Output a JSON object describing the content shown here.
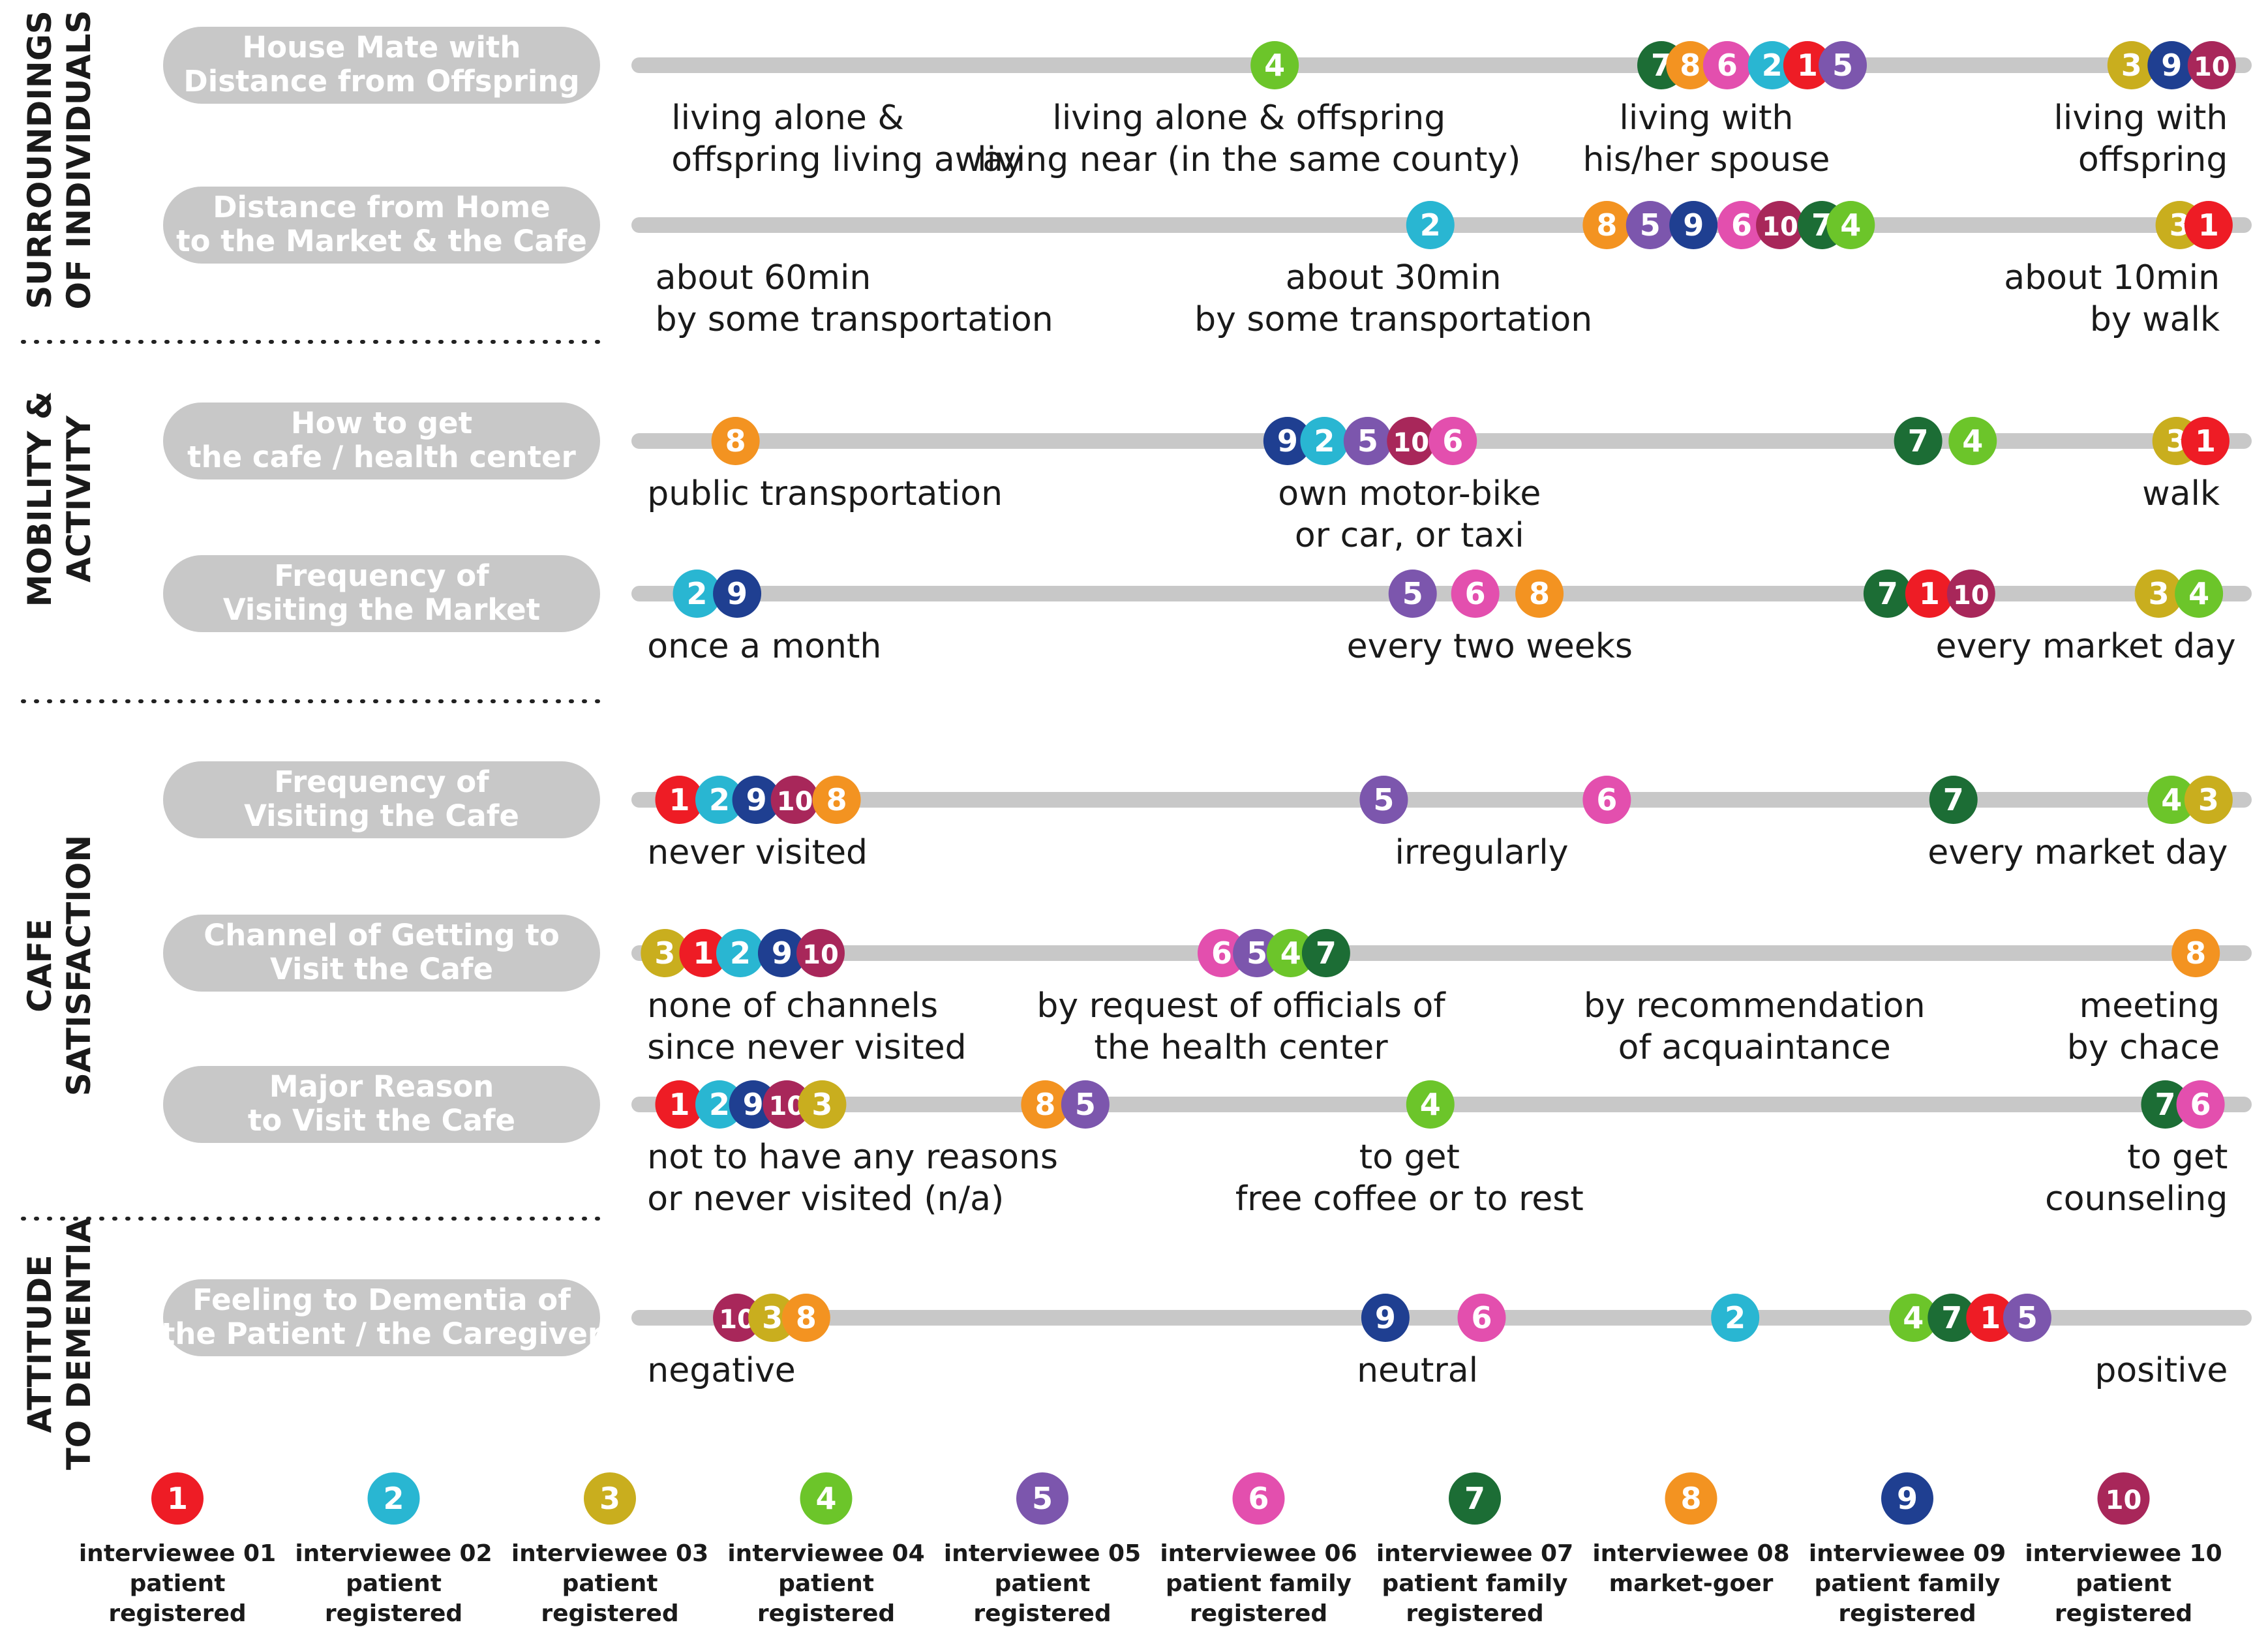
{
  "chart_data": {
    "type": "scatter",
    "title": "",
    "sections": [
      {
        "key": "surroundings",
        "lines": [
          "SURROUNDINGS",
          "OF INDIVIDUALS"
        ]
      },
      {
        "key": "mobility",
        "lines": [
          "MOBILITY &",
          "ACTIVITY"
        ]
      },
      {
        "key": "cafe",
        "lines": [
          "CAFE",
          "SATISFACTION"
        ]
      },
      {
        "key": "attitude",
        "lines": [
          "ATTITUDE",
          "TO DEMENTIA"
        ]
      }
    ],
    "rows": [
      {
        "key": "housemate",
        "label": [
          "House Mate with",
          "Distance from Offspring"
        ],
        "scale_labels": [
          {
            "lines": [
              "living alone &",
              "offspring living away"
            ],
            "pos": 0.02,
            "align": "start"
          },
          {
            "lines": [
              "living alone & offspring",
              "living near (in the same county)"
            ],
            "pos": 0.38,
            "align": "middle"
          },
          {
            "lines": [
              "living with",
              "his/her spouse"
            ],
            "pos": 0.665,
            "align": "middle"
          },
          {
            "lines": [
              "living with",
              "offspring"
            ],
            "pos": 0.99,
            "align": "end"
          }
        ],
        "points": [
          {
            "id": 4,
            "pos": 0.396
          },
          {
            "id": 7,
            "pos": 0.637
          },
          {
            "id": 8,
            "pos": 0.655
          },
          {
            "id": 6,
            "pos": 0.678
          },
          {
            "id": 2,
            "pos": 0.706
          },
          {
            "id": 1,
            "pos": 0.728
          },
          {
            "id": 5,
            "pos": 0.75
          },
          {
            "id": 3,
            "pos": 0.93
          },
          {
            "id": 9,
            "pos": 0.955
          },
          {
            "id": 10,
            "pos": 0.98
          }
        ]
      },
      {
        "key": "distance",
        "label": [
          "Distance from Home",
          "to the Market & the Cafe"
        ],
        "scale_labels": [
          {
            "lines": [
              "about 60min",
              "by some transportation"
            ],
            "pos": 0.01,
            "align": "start"
          },
          {
            "lines": [
              "about 30min",
              "by some transportation"
            ],
            "pos": 0.47,
            "align": "middle"
          },
          {
            "lines": [
              "about 10min",
              "by walk"
            ],
            "pos": 0.985,
            "align": "end"
          }
        ],
        "points": [
          {
            "id": 2,
            "pos": 0.493
          },
          {
            "id": 8,
            "pos": 0.603
          },
          {
            "id": 5,
            "pos": 0.63
          },
          {
            "id": 9,
            "pos": 0.657
          },
          {
            "id": 6,
            "pos": 0.687
          },
          {
            "id": 10,
            "pos": 0.711
          },
          {
            "id": 7,
            "pos": 0.737
          },
          {
            "id": 4,
            "pos": 0.755
          },
          {
            "id": 3,
            "pos": 0.96
          },
          {
            "id": 1,
            "pos": 0.978
          }
        ]
      },
      {
        "key": "howtoget",
        "label": [
          "How to get",
          "the cafe / health center"
        ],
        "scale_labels": [
          {
            "lines": [
              "public transportation"
            ],
            "pos": 0.005,
            "align": "start"
          },
          {
            "lines": [
              "own motor-bike",
              "or car, or taxi"
            ],
            "pos": 0.48,
            "align": "middle"
          },
          {
            "lines": [
              "walk"
            ],
            "pos": 0.985,
            "align": "end"
          }
        ],
        "points": [
          {
            "id": 8,
            "pos": 0.06
          },
          {
            "id": 9,
            "pos": 0.404
          },
          {
            "id": 2,
            "pos": 0.427
          },
          {
            "id": 5,
            "pos": 0.454
          },
          {
            "id": 10,
            "pos": 0.481
          },
          {
            "id": 6,
            "pos": 0.507
          },
          {
            "id": 7,
            "pos": 0.797
          },
          {
            "id": 4,
            "pos": 0.831
          },
          {
            "id": 3,
            "pos": 0.958
          },
          {
            "id": 1,
            "pos": 0.976
          }
        ]
      },
      {
        "key": "market",
        "label": [
          "Frequency of",
          "Visiting the Market"
        ],
        "scale_labels": [
          {
            "lines": [
              "once a month"
            ],
            "pos": 0.005,
            "align": "start"
          },
          {
            "lines": [
              "every two weeks"
            ],
            "pos": 0.53,
            "align": "middle"
          },
          {
            "lines": [
              "every market day"
            ],
            "pos": 0.995,
            "align": "end"
          }
        ],
        "points": [
          {
            "id": 2,
            "pos": 0.036
          },
          {
            "id": 9,
            "pos": 0.061
          },
          {
            "id": 5,
            "pos": 0.482
          },
          {
            "id": 6,
            "pos": 0.521
          },
          {
            "id": 8,
            "pos": 0.561
          },
          {
            "id": 7,
            "pos": 0.778
          },
          {
            "id": 1,
            "pos": 0.804
          },
          {
            "id": 10,
            "pos": 0.83
          },
          {
            "id": 3,
            "pos": 0.947
          },
          {
            "id": 4,
            "pos": 0.972
          }
        ]
      },
      {
        "key": "cafefreq",
        "label": [
          "Frequency of",
          "Visiting the Cafe"
        ],
        "scale_labels": [
          {
            "lines": [
              "never visited"
            ],
            "pos": 0.005,
            "align": "start"
          },
          {
            "lines": [
              "irregularly"
            ],
            "pos": 0.525,
            "align": "middle"
          },
          {
            "lines": [
              "every market day"
            ],
            "pos": 0.99,
            "align": "end"
          }
        ],
        "points": [
          {
            "id": 1,
            "pos": 0.025
          },
          {
            "id": 2,
            "pos": 0.05
          },
          {
            "id": 9,
            "pos": 0.073
          },
          {
            "id": 10,
            "pos": 0.097
          },
          {
            "id": 8,
            "pos": 0.123
          },
          {
            "id": 5,
            "pos": 0.464
          },
          {
            "id": 6,
            "pos": 0.603
          },
          {
            "id": 7,
            "pos": 0.819
          },
          {
            "id": 4,
            "pos": 0.955
          },
          {
            "id": 3,
            "pos": 0.978
          }
        ]
      },
      {
        "key": "channel",
        "label": [
          "Channel of Getting to",
          "Visit the Cafe"
        ],
        "scale_labels": [
          {
            "lines": [
              "none of channels",
              "since never visited"
            ],
            "pos": 0.005,
            "align": "start"
          },
          {
            "lines": [
              "by request of officials of",
              "the health center"
            ],
            "pos": 0.375,
            "align": "middle"
          },
          {
            "lines": [
              "by recommendation",
              "of acquaintance"
            ],
            "pos": 0.695,
            "align": "middle"
          },
          {
            "lines": [
              "meeting",
              "by chace"
            ],
            "pos": 0.985,
            "align": "end"
          }
        ],
        "points": [
          {
            "id": 3,
            "pos": 0.016
          },
          {
            "id": 1,
            "pos": 0.04
          },
          {
            "id": 2,
            "pos": 0.063
          },
          {
            "id": 9,
            "pos": 0.089
          },
          {
            "id": 10,
            "pos": 0.113
          },
          {
            "id": 6,
            "pos": 0.363
          },
          {
            "id": 5,
            "pos": 0.385
          },
          {
            "id": 4,
            "pos": 0.406
          },
          {
            "id": 7,
            "pos": 0.428
          },
          {
            "id": 8,
            "pos": 0.97
          }
        ]
      },
      {
        "key": "reason",
        "label": [
          "Major Reason",
          "to Visit the Cafe"
        ],
        "scale_labels": [
          {
            "lines": [
              "not to have any reasons",
              "or never visited (n/a)"
            ],
            "pos": 0.005,
            "align": "start"
          },
          {
            "lines": [
              "to get",
              "free coffee or to rest"
            ],
            "pos": 0.48,
            "align": "middle"
          },
          {
            "lines": [
              "to get",
              "counseling"
            ],
            "pos": 0.99,
            "align": "end"
          }
        ],
        "points": [
          {
            "id": 1,
            "pos": 0.025
          },
          {
            "id": 2,
            "pos": 0.05
          },
          {
            "id": 9,
            "pos": 0.071
          },
          {
            "id": 10,
            "pos": 0.092
          },
          {
            "id": 3,
            "pos": 0.114
          },
          {
            "id": 8,
            "pos": 0.253
          },
          {
            "id": 5,
            "pos": 0.278
          },
          {
            "id": 4,
            "pos": 0.493
          },
          {
            "id": 7,
            "pos": 0.951
          },
          {
            "id": 6,
            "pos": 0.973
          }
        ]
      },
      {
        "key": "feeling",
        "label": [
          "Feeling to Dementia of",
          "the Patient / the Caregiver"
        ],
        "scale_labels": [
          {
            "lines": [
              "negative"
            ],
            "pos": 0.005,
            "align": "start"
          },
          {
            "lines": [
              "neutral"
            ],
            "pos": 0.485,
            "align": "middle"
          },
          {
            "lines": [
              "positive"
            ],
            "pos": 0.99,
            "align": "end"
          }
        ],
        "points": [
          {
            "id": 10,
            "pos": 0.061
          },
          {
            "id": 3,
            "pos": 0.083
          },
          {
            "id": 8,
            "pos": 0.104
          },
          {
            "id": 9,
            "pos": 0.465
          },
          {
            "id": 6,
            "pos": 0.525
          },
          {
            "id": 2,
            "pos": 0.683
          },
          {
            "id": 4,
            "pos": 0.794
          },
          {
            "id": 7,
            "pos": 0.818
          },
          {
            "id": 1,
            "pos": 0.842
          },
          {
            "id": 5,
            "pos": 0.865
          }
        ]
      }
    ],
    "legend": [
      {
        "id": 1,
        "number": "1",
        "color": "#ee1c25",
        "lines": [
          "interviewee 01",
          "patient",
          "registered"
        ]
      },
      {
        "id": 2,
        "number": "2",
        "color": "#29b6d2",
        "lines": [
          "interviewee 02",
          "patient",
          "registered"
        ]
      },
      {
        "id": 3,
        "number": "3",
        "color": "#c9ae1e",
        "lines": [
          "interviewee 03",
          "patient",
          "registered"
        ]
      },
      {
        "id": 4,
        "number": "4",
        "color": "#6cc52a",
        "lines": [
          "interviewee 04",
          "patient",
          "registered"
        ]
      },
      {
        "id": 5,
        "number": "5",
        "color": "#7c56ad",
        "lines": [
          "interviewee 05",
          "patient",
          "registered"
        ]
      },
      {
        "id": 6,
        "number": "6",
        "color": "#e34fae",
        "lines": [
          "interviewee 06",
          "patient family",
          "registered"
        ]
      },
      {
        "id": 7,
        "number": "7",
        "color": "#1c6d35",
        "lines": [
          "interviewee 07",
          "patient family",
          "registered"
        ]
      },
      {
        "id": 8,
        "number": "8",
        "color": "#f39321",
        "lines": [
          "interviewee 08",
          "market-goer"
        ]
      },
      {
        "id": 9,
        "number": "9",
        "color": "#1f3f91",
        "lines": [
          "interviewee 09",
          "patient family",
          "registered"
        ]
      },
      {
        "id": 10,
        "number": "10",
        "color": "#a8275a",
        "lines": [
          "interviewee 10",
          "patient",
          "registered"
        ]
      }
    ],
    "colors": {
      "track": "#c8c8c8",
      "pill": "#c8c8c8",
      "text": "#1a1a1a",
      "pill_text": "#ffffff"
    }
  }
}
